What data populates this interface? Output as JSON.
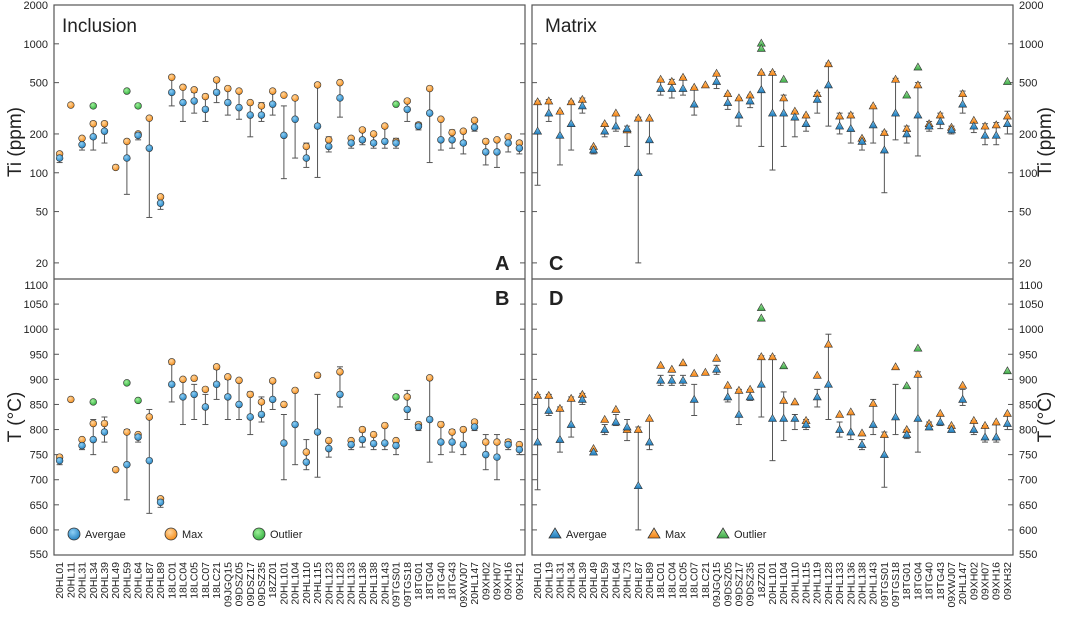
{
  "colors": {
    "avg": "#2b8fce",
    "max": "#f7941d",
    "outlier": "#3dbd4b",
    "frame": "#555555",
    "whisker": "#555555"
  },
  "chart_data": {
    "type": "scatter",
    "description_text": {
      "inclusion": "Inclusion",
      "matrix": "Matrix"
    },
    "panel_letters": {
      "A": "A",
      "B": "B",
      "C": "C",
      "D": "D"
    },
    "axes": {
      "ti": {
        "label": "Ti (ppm)",
        "scale": "log",
        "range": [
          15,
          2000
        ],
        "ticks": [
          20,
          50,
          100,
          200,
          500,
          1000,
          2000
        ],
        "tick_labels": [
          "20",
          "50",
          "100",
          "200",
          "500",
          "1000",
          "2000"
        ]
      },
      "temp": {
        "label": "T (°C)",
        "scale": "linear",
        "range": [
          550,
          1100
        ],
        "ticks": [
          550,
          600,
          650,
          700,
          750,
          800,
          850,
          900,
          950,
          1000,
          1050,
          1100
        ],
        "tick_labels": [
          "550",
          "600",
          "650",
          "700",
          "750",
          "800",
          "850",
          "900",
          "950",
          "1000",
          "1050",
          "1100"
        ]
      }
    },
    "legend_left": {
      "avg": "Avergae",
      "max": "Max",
      "outlier": "Outlier"
    },
    "legend_right": {
      "avg": "Avergae",
      "max": "Max",
      "outlier": "Outlier"
    },
    "inclusion": {
      "samples": [
        "20HL01",
        "20HL11",
        "20HL31",
        "20HL34",
        "20HL39",
        "20HL49",
        "20HL59",
        "20HL64",
        "20HL87",
        "20HL89",
        "18LC01",
        "18LC04",
        "18LC05",
        "18LC07",
        "18LC21",
        "09JGQ15",
        "09DSZ05",
        "09DSZ17",
        "09DSZ35",
        "18ZZ01",
        "20HL101",
        "20HL104",
        "20HL110",
        "20HL115",
        "20HL123",
        "20HL128",
        "20HL133",
        "20HL136",
        "20HL138",
        "20HL143",
        "09TGS01",
        "09TGS18",
        "18TG01",
        "18TG04",
        "18TG40",
        "18TG43",
        "09XWJ07",
        "20HL147",
        "09XH02",
        "09XH07",
        "09XH16",
        "09XH21"
      ],
      "ti_avg": [
        130,
        null,
        165,
        190,
        210,
        null,
        130,
        195,
        155,
        58,
        420,
        350,
        360,
        310,
        420,
        350,
        320,
        280,
        280,
        340,
        195,
        260,
        130,
        230,
        160,
        380,
        170,
        180,
        170,
        175,
        170,
        310,
        230,
        290,
        180,
        180,
        170,
        225,
        145,
        145,
        170,
        155
      ],
      "ti_min": [
        120,
        null,
        150,
        150,
        170,
        null,
        68,
        180,
        45,
        52,
        330,
        250,
        290,
        250,
        350,
        280,
        260,
        190,
        250,
        280,
        90,
        130,
        110,
        92,
        145,
        270,
        155,
        165,
        155,
        155,
        155,
        250,
        215,
        120,
        150,
        155,
        140,
        210,
        115,
        110,
        145,
        140
      ],
      "ti_max": [
        140,
        340,
        190,
        250,
        250,
        110,
        180,
        200,
        270,
        65,
        560,
        460,
        420,
        380,
        530,
        460,
        440,
        360,
        350,
        440,
        330,
        380,
        170,
        480,
        190,
        510,
        185,
        215,
        200,
        235,
        185,
        370,
        245,
        450,
        260,
        215,
        210,
        250,
        180,
        185,
        195,
        175
      ],
      "ti_peak": [
        140,
        335,
        185,
        240,
        240,
        110,
        175,
        200,
        265,
        65,
        550,
        460,
        440,
        390,
        525,
        450,
        430,
        350,
        330,
        430,
        400,
        380,
        160,
        480,
        180,
        500,
        185,
        215,
        200,
        230,
        175,
        360,
        235,
        450,
        260,
        205,
        210,
        255,
        175,
        180,
        190,
        170
      ],
      "ti_outliers": [
        [
          3,
          330
        ],
        [
          6,
          430
        ],
        [
          7,
          330
        ],
        [
          30,
          340
        ]
      ],
      "t_avg": [
        738,
        null,
        768,
        780,
        795,
        null,
        730,
        785,
        738,
        655,
        890,
        865,
        870,
        845,
        890,
        865,
        850,
        825,
        830,
        860,
        773,
        810,
        735,
        795,
        762,
        870,
        770,
        780,
        772,
        773,
        768,
        840,
        805,
        820,
        775,
        775,
        770,
        805,
        750,
        745,
        770,
        760
      ],
      "t_min": [
        730,
        null,
        760,
        750,
        775,
        null,
        660,
        775,
        633,
        645,
        855,
        810,
        820,
        810,
        860,
        820,
        820,
        790,
        815,
        840,
        700,
        730,
        720,
        705,
        745,
        845,
        760,
        765,
        760,
        760,
        750,
        820,
        798,
        735,
        750,
        755,
        750,
        798,
        720,
        700,
        760,
        750
      ],
      "t_max": [
        748,
        860,
        780,
        820,
        825,
        720,
        800,
        790,
        840,
        662,
        930,
        900,
        890,
        870,
        920,
        900,
        895,
        875,
        865,
        895,
        830,
        880,
        780,
        870,
        780,
        925,
        780,
        795,
        790,
        810,
        780,
        878,
        812,
        905,
        815,
        800,
        800,
        818,
        790,
        790,
        780,
        770
      ],
      "t_peak": [
        745,
        860,
        780,
        812,
        812,
        720,
        795,
        790,
        825,
        662,
        935,
        900,
        902,
        880,
        925,
        905,
        898,
        870,
        855,
        897,
        850,
        878,
        755,
        908,
        778,
        915,
        778,
        800,
        790,
        808,
        778,
        865,
        810,
        903,
        810,
        795,
        800,
        815,
        775,
        775,
        775,
        770
      ],
      "t_outliers": [
        [
          3,
          855
        ],
        [
          6,
          893
        ],
        [
          7,
          858
        ],
        [
          30,
          865
        ]
      ]
    },
    "matrix": {
      "samples": [
        "20HL01",
        "20HL19",
        "20HL31",
        "20HL34",
        "20HL39",
        "20HL49",
        "20HL59",
        "20HL64",
        "20HL73",
        "20HL87",
        "20HL89",
        "18LC01",
        "18LC04",
        "18LC05",
        "18LC07",
        "18LC21",
        "09JGQ15",
        "09DSZ05",
        "09DSZ17",
        "09DSZ35",
        "18ZZ01",
        "20HL101",
        "20HL104",
        "20HL110",
        "20HL115",
        "20HL119",
        "20HL128",
        "20HL133",
        "20HL136",
        "20HL138",
        "20HL143",
        "09TGS01",
        "09TGS18",
        "18TG01",
        "18TG04",
        "18TG40",
        "18TG43",
        "09XWJ07",
        "20HL147",
        "09XH02",
        "09XH07",
        "09XH16",
        "09XH32"
      ],
      "ti_avg": [
        210,
        290,
        195,
        240,
        330,
        150,
        210,
        230,
        220,
        100,
        180,
        450,
        450,
        450,
        340,
        null,
        510,
        350,
        280,
        360,
        440,
        290,
        290,
        270,
        240,
        370,
        480,
        230,
        220,
        175,
        235,
        150,
        290,
        200,
        280,
        230,
        250,
        215,
        340,
        230,
        195,
        195,
        240
      ],
      "ti_min": [
        80,
        250,
        115,
        150,
        290,
        140,
        190,
        210,
        160,
        20,
        140,
        400,
        380,
        400,
        280,
        null,
        450,
        310,
        230,
        320,
        160,
        105,
        160,
        190,
        210,
        290,
        230,
        200,
        170,
        150,
        170,
        70,
        180,
        170,
        135,
        210,
        220,
        200,
        290,
        205,
        165,
        165,
        200
      ],
      "ti_max": [
        360,
        370,
        300,
        360,
        380,
        160,
        240,
        280,
        230,
        270,
        260,
        530,
        530,
        550,
        460,
        480,
        590,
        410,
        380,
        400,
        600,
        610,
        400,
        300,
        280,
        420,
        710,
        290,
        290,
        185,
        330,
        210,
        540,
        230,
        500,
        250,
        290,
        230,
        430,
        250,
        240,
        245,
        300
      ],
      "ti_peak": [
        355,
        360,
        300,
        355,
        370,
        160,
        240,
        290,
        215,
        265,
        265,
        530,
        510,
        550,
        460,
        480,
        590,
        410,
        380,
        400,
        600,
        600,
        380,
        300,
        280,
        410,
        700,
        275,
        280,
        185,
        330,
        205,
        530,
        220,
        480,
        240,
        280,
        225,
        410,
        255,
        230,
        235,
        275
      ],
      "ti_outliers": [
        [
          20,
          1010
        ],
        [
          20,
          920
        ],
        [
          22,
          530
        ],
        [
          33,
          400
        ],
        [
          34,
          660
        ],
        [
          42,
          510
        ]
      ],
      "t_avg": [
        775,
        838,
        780,
        810,
        860,
        755,
        800,
        815,
        805,
        688,
        775,
        898,
        898,
        898,
        860,
        null,
        920,
        865,
        830,
        865,
        890,
        822,
        822,
        822,
        810,
        865,
        890,
        800,
        795,
        770,
        810,
        750,
        825,
        790,
        822,
        805,
        815,
        800,
        860,
        800,
        785,
        785,
        812
      ],
      "t_min": [
        680,
        828,
        755,
        785,
        850,
        750,
        790,
        808,
        778,
        600,
        760,
        888,
        888,
        888,
        828,
        null,
        910,
        855,
        810,
        858,
        825,
        738,
        778,
        800,
        800,
        845,
        820,
        785,
        780,
        760,
        790,
        685,
        790,
        782,
        755,
        800,
        808,
        795,
        848,
        790,
        775,
        775,
        800
      ],
      "t_max": [
        870,
        870,
        845,
        865,
        872,
        760,
        810,
        830,
        820,
        805,
        818,
        908,
        908,
        908,
        890,
        920,
        928,
        885,
        880,
        880,
        947,
        947,
        875,
        830,
        820,
        880,
        990,
        815,
        830,
        780,
        860,
        795,
        890,
        800,
        915,
        815,
        830,
        808,
        880,
        818,
        808,
        810,
        830
      ],
      "t_peak": [
        868,
        868,
        842,
        862,
        870,
        762,
        820,
        840,
        800,
        800,
        822,
        928,
        920,
        933,
        912,
        914,
        942,
        888,
        878,
        880,
        945,
        945,
        858,
        855,
        818,
        908,
        970,
        830,
        835,
        793,
        852,
        790,
        925,
        800,
        910,
        812,
        832,
        808,
        888,
        818,
        808,
        815,
        832
      ],
      "t_outliers": [
        [
          20,
          1043
        ],
        [
          20,
          1022
        ],
        [
          22,
          927
        ],
        [
          33,
          887
        ],
        [
          34,
          962
        ],
        [
          42,
          917
        ]
      ]
    }
  }
}
